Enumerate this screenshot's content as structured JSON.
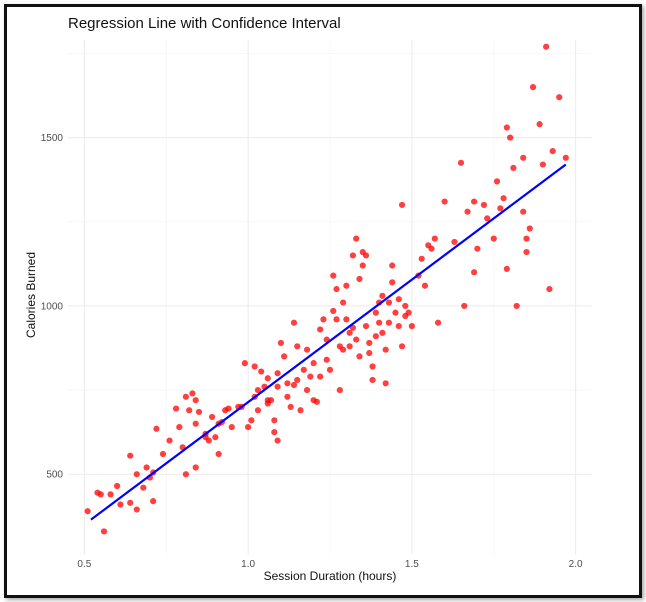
{
  "chart_data": {
    "type": "scatter",
    "title": "Regression Line with Confidence Interval",
    "xlabel": "Session Duration (hours)",
    "ylabel": "Calories Burned",
    "xlim": [
      0.45,
      2.05
    ],
    "ylim": [
      260,
      1790
    ],
    "x_ticks": [
      0.5,
      1.0,
      1.5,
      2.0
    ],
    "x_tick_labels": [
      "0.5",
      "1.0",
      "1.5",
      "2.0"
    ],
    "y_ticks": [
      500,
      1000,
      1500
    ],
    "y_tick_labels": [
      "500",
      "1000",
      "1500"
    ],
    "grid": true,
    "colors": {
      "points": "#ff0000",
      "line": "#0000ff",
      "grid": "#ebebeb"
    },
    "regression_line": {
      "x": [
        0.52,
        1.97
      ],
      "y": [
        365,
        1420
      ]
    },
    "series": [
      {
        "points": [
          [
            0.51,
            390
          ],
          [
            0.54,
            445
          ],
          [
            0.55,
            440
          ],
          [
            0.56,
            330
          ],
          [
            0.58,
            440
          ],
          [
            0.6,
            465
          ],
          [
            0.61,
            410
          ],
          [
            0.64,
            555
          ],
          [
            0.64,
            415
          ],
          [
            0.66,
            395
          ],
          [
            0.66,
            500
          ],
          [
            0.68,
            460
          ],
          [
            0.7,
            490
          ],
          [
            0.71,
            505
          ],
          [
            0.71,
            420
          ],
          [
            0.72,
            635
          ],
          [
            0.78,
            695
          ],
          [
            0.8,
            580
          ],
          [
            0.81,
            730
          ],
          [
            0.81,
            500
          ],
          [
            0.83,
            740
          ],
          [
            0.84,
            720
          ],
          [
            0.84,
            650
          ],
          [
            0.84,
            520
          ],
          [
            0.85,
            685
          ],
          [
            0.87,
            620
          ],
          [
            0.88,
            600
          ],
          [
            0.89,
            670
          ],
          [
            0.9,
            610
          ],
          [
            0.91,
            560
          ],
          [
            0.92,
            655
          ],
          [
            0.94,
            695
          ],
          [
            0.97,
            700
          ],
          [
            0.99,
            830
          ],
          [
            1.0,
            640
          ],
          [
            1.01,
            660
          ],
          [
            1.02,
            820
          ],
          [
            1.02,
            730
          ],
          [
            1.03,
            750
          ],
          [
            1.04,
            805
          ],
          [
            1.05,
            760
          ],
          [
            1.06,
            710
          ],
          [
            1.06,
            785
          ],
          [
            1.07,
            720
          ],
          [
            1.08,
            660
          ],
          [
            1.08,
            625
          ],
          [
            1.09,
            800
          ],
          [
            1.09,
            600
          ],
          [
            1.1,
            890
          ],
          [
            1.11,
            850
          ],
          [
            1.12,
            730
          ],
          [
            1.13,
            700
          ],
          [
            1.14,
            950
          ],
          [
            1.14,
            765
          ],
          [
            1.15,
            880
          ],
          [
            1.16,
            690
          ],
          [
            1.17,
            810
          ],
          [
            1.18,
            750
          ],
          [
            1.19,
            790
          ],
          [
            1.2,
            720
          ],
          [
            1.2,
            830
          ],
          [
            1.21,
            715
          ],
          [
            1.22,
            790
          ],
          [
            1.22,
            930
          ],
          [
            1.23,
            960
          ],
          [
            1.24,
            900
          ],
          [
            1.24,
            840
          ],
          [
            1.25,
            810
          ],
          [
            1.26,
            985
          ],
          [
            1.26,
            1090
          ],
          [
            1.27,
            960
          ],
          [
            1.28,
            880
          ],
          [
            1.28,
            750
          ],
          [
            1.29,
            1010
          ],
          [
            1.3,
            960
          ],
          [
            1.3,
            1060
          ],
          [
            1.31,
            880
          ],
          [
            1.31,
            920
          ],
          [
            1.32,
            935
          ],
          [
            1.32,
            1150
          ],
          [
            1.33,
            900
          ],
          [
            1.33,
            1200
          ],
          [
            1.34,
            1080
          ],
          [
            1.35,
            1120
          ],
          [
            1.35,
            1160
          ],
          [
            1.36,
            940
          ],
          [
            1.36,
            1150
          ],
          [
            1.37,
            890
          ],
          [
            1.37,
            860
          ],
          [
            1.38,
            820
          ],
          [
            1.38,
            780
          ],
          [
            1.39,
            980
          ],
          [
            1.39,
            910
          ],
          [
            1.4,
            1010
          ],
          [
            1.4,
            950
          ],
          [
            1.41,
            1030
          ],
          [
            1.41,
            920
          ],
          [
            1.42,
            870
          ],
          [
            1.42,
            770
          ],
          [
            1.43,
            1010
          ],
          [
            1.43,
            950
          ],
          [
            1.44,
            1120
          ],
          [
            1.45,
            980
          ],
          [
            1.46,
            940
          ],
          [
            1.47,
            880
          ],
          [
            1.47,
            1300
          ],
          [
            1.48,
            1000
          ],
          [
            1.48,
            970
          ],
          [
            1.49,
            980
          ],
          [
            1.5,
            940
          ],
          [
            1.53,
            1140
          ],
          [
            1.55,
            1180
          ],
          [
            1.56,
            1170
          ],
          [
            1.57,
            1200
          ],
          [
            1.58,
            950
          ],
          [
            1.6,
            1310
          ],
          [
            1.65,
            1425
          ],
          [
            1.66,
            1000
          ],
          [
            1.69,
            1310
          ],
          [
            1.69,
            1100
          ],
          [
            1.7,
            1170
          ],
          [
            1.72,
            1300
          ],
          [
            1.75,
            1200
          ],
          [
            1.77,
            1290
          ],
          [
            1.78,
            1320
          ],
          [
            1.79,
            1110
          ],
          [
            1.79,
            1530
          ],
          [
            1.8,
            1500
          ],
          [
            1.81,
            1410
          ],
          [
            1.82,
            1000
          ],
          [
            1.84,
            1280
          ],
          [
            1.85,
            1200
          ],
          [
            1.85,
            1160
          ],
          [
            1.87,
            1650
          ],
          [
            1.89,
            1540
          ],
          [
            1.9,
            1420
          ],
          [
            1.92,
            1050
          ],
          [
            1.93,
            1460
          ],
          [
            1.95,
            1620
          ],
          [
            1.97,
            1440
          ],
          [
            1.91,
            1770
          ],
          [
            1.86,
            1230
          ],
          [
            1.84,
            1440
          ],
          [
            1.76,
            1370
          ],
          [
            1.73,
            1260
          ],
          [
            1.67,
            1280
          ],
          [
            1.63,
            1190
          ],
          [
            1.54,
            1060
          ],
          [
            1.52,
            1090
          ],
          [
            1.46,
            1020
          ],
          [
            1.44,
            1070
          ],
          [
            1.34,
            850
          ],
          [
            1.29,
            870
          ],
          [
            1.27,
            1050
          ],
          [
            1.18,
            870
          ],
          [
            1.15,
            780
          ],
          [
            1.12,
            770
          ],
          [
            1.09,
            760
          ],
          [
            1.06,
            720
          ],
          [
            1.03,
            690
          ],
          [
            0.98,
            700
          ],
          [
            0.95,
            640
          ],
          [
            0.93,
            690
          ],
          [
            0.91,
            650
          ],
          [
            0.87,
            610
          ],
          [
            0.82,
            690
          ],
          [
            0.79,
            640
          ],
          [
            0.76,
            600
          ],
          [
            0.74,
            560
          ],
          [
            0.69,
            520
          ]
        ]
      }
    ]
  }
}
